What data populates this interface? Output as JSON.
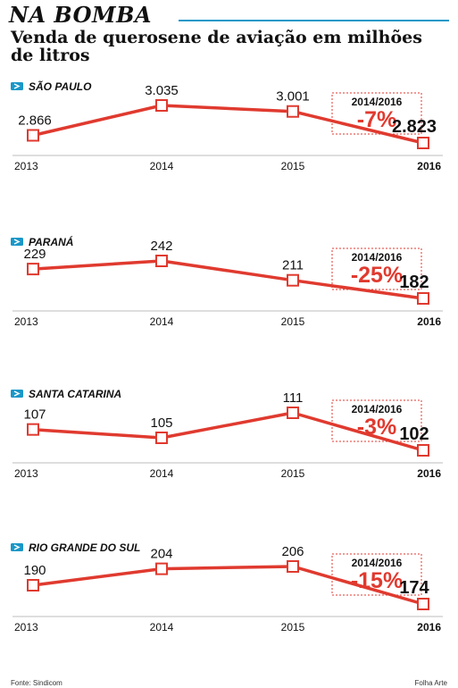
{
  "kicker": "NA BOMBA",
  "title": "Venda de querosene de aviação em milhões de litros",
  "source": "Fonte: Sindicom",
  "credit": "Folha Arte",
  "colors": {
    "line": "#e03a2f",
    "accent": "#1a97c8",
    "text": "#111111"
  },
  "chart_data": [
    {
      "type": "line",
      "title": "SÃO PAULO",
      "x": [
        "2013",
        "2014",
        "2015",
        "2016"
      ],
      "values": [
        2866,
        3035,
        3001,
        2823
      ],
      "value_labels": [
        "2.866",
        "3.035",
        "3.001",
        "2.823"
      ],
      "change_period": "2014/2016",
      "change": "-7%"
    },
    {
      "type": "line",
      "title": "PARANÁ",
      "x": [
        "2013",
        "2014",
        "2015",
        "2016"
      ],
      "values": [
        229,
        242,
        211,
        182
      ],
      "value_labels": [
        "229",
        "242",
        "211",
        "182"
      ],
      "change_period": "2014/2016",
      "change": "-25%"
    },
    {
      "type": "line",
      "title": "SANTA CATARINA",
      "x": [
        "2013",
        "2014",
        "2015",
        "2016"
      ],
      "values": [
        107,
        105,
        111,
        102
      ],
      "value_labels": [
        "107",
        "105",
        "111",
        "102"
      ],
      "change_period": "2014/2016",
      "change": "-3%"
    },
    {
      "type": "line",
      "title": "RIO GRANDE DO SUL",
      "x": [
        "2013",
        "2014",
        "2015",
        "2016"
      ],
      "values": [
        190,
        204,
        206,
        174
      ],
      "value_labels": [
        "190",
        "204",
        "206",
        "174"
      ],
      "change_period": "2014/2016",
      "change": "-15%"
    }
  ]
}
